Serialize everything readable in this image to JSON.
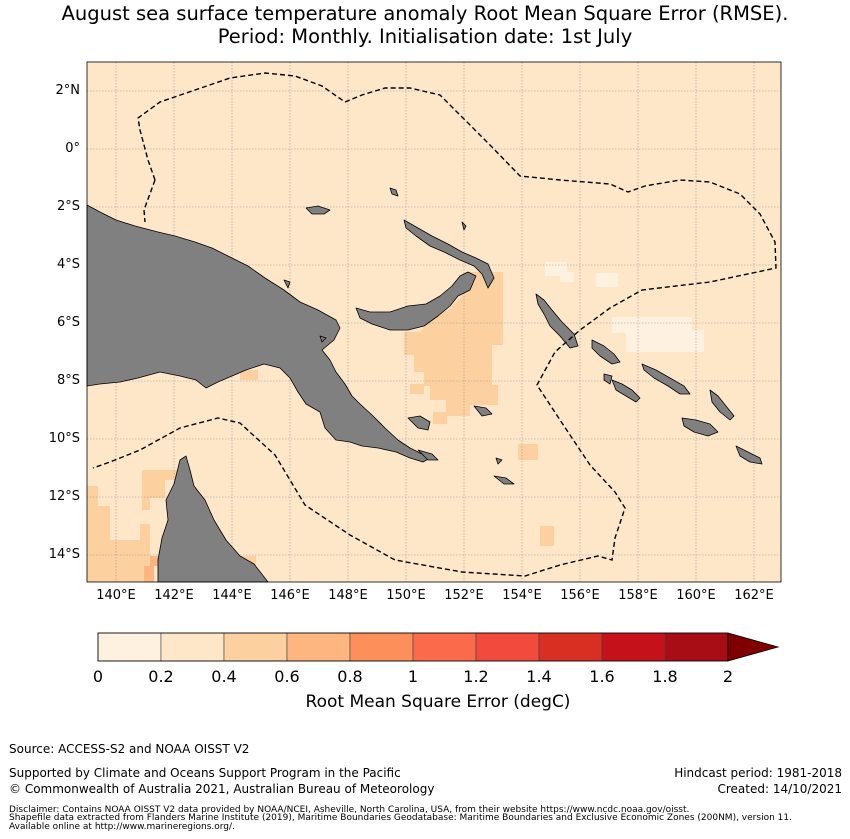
{
  "header": {
    "title_line1": "August sea surface temperature anomaly Root Mean Square Error (RMSE).",
    "title_line2": "Period: Monthly. Initialisation date: 1st July"
  },
  "map": {
    "lat_labels": [
      "2°N",
      "0°",
      "2°S",
      "4°S",
      "6°S",
      "8°S",
      "10°S",
      "12°S",
      "14°S"
    ],
    "lon_labels": [
      "140°E",
      "142°E",
      "144°E",
      "146°E",
      "148°E",
      "150°E",
      "152°E",
      "154°E",
      "156°E",
      "158°E",
      "160°E",
      "162°E"
    ],
    "ocean_color": "#fee6c9",
    "land_color": "#808080",
    "lat_range": [
      -15,
      3
    ],
    "lon_range": [
      139,
      163
    ]
  },
  "colorbar": {
    "ticks": [
      "0",
      "0.2",
      "0.4",
      "0.6",
      "0.8",
      "1",
      "1.2",
      "1.4",
      "1.6",
      "1.8",
      "2"
    ],
    "colors": [
      "#fff1df",
      "#fee6c9",
      "#fdd09f",
      "#fdb67f",
      "#fd8f5b",
      "#fb6a4a",
      "#f24a3d",
      "#d92f22",
      "#c5111a",
      "#a80c14"
    ],
    "extend_color": "#7f0000",
    "label": "Root Mean Square Error (degC)"
  },
  "footer": {
    "source": "Source: ACCESS-S2 and NOAA OISST V2",
    "support": "Supported by Climate and Oceans Support Program in the Pacific",
    "copyright": "© Commonwealth of Australia 2021, Australian Bureau of Meteorology",
    "hindcast": "Hindcast period: 1981-2018",
    "created": "Created: 14/10/2021",
    "disclaimer1": "Disclaimer: Contains NOAA OISST V2 data provided by NOAA/NCEI, Asheville, North Carolina, USA, from their website https://www.ncdc.noaa.gov/oisst.",
    "disclaimer2": "Shapefile data extracted from Flanders Marine Institute (2019), Maritime Boundaries Geodatabase: Maritime Boundaries and Exclusive Economic Zones (200NM), version 11.",
    "disclaimer3": "Available online at http://www.marineregions.org/."
  }
}
